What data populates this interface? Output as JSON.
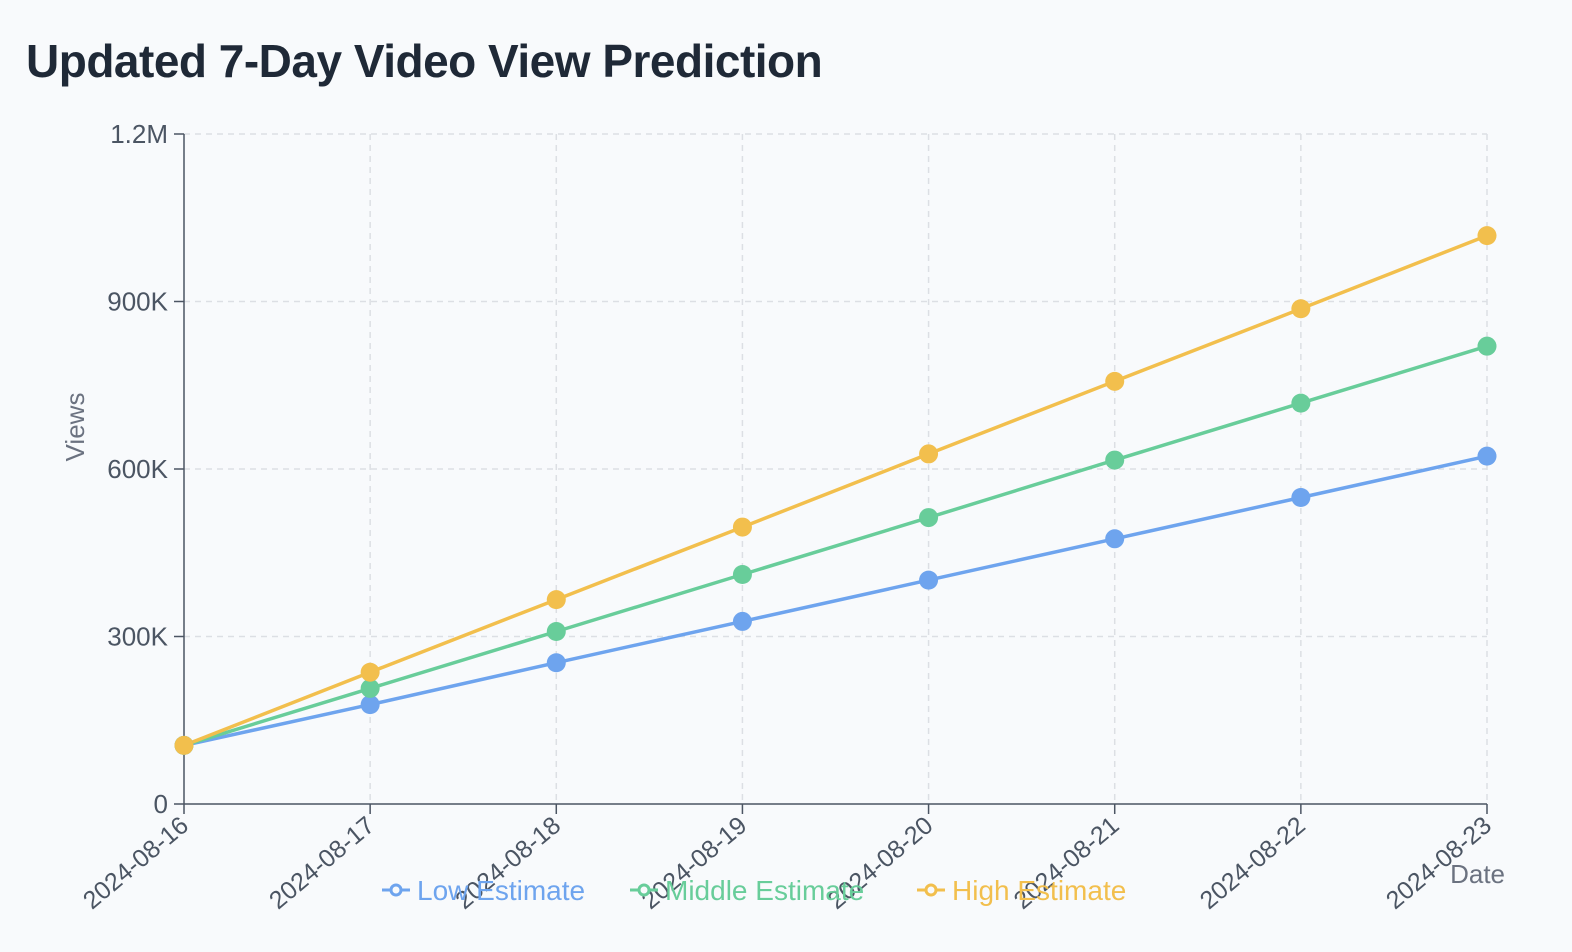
{
  "title": "Updated 7-Day Video View Prediction",
  "chart_data": {
    "type": "line",
    "xlabel": "Date",
    "ylabel": "Views",
    "ylim": [
      0,
      1200000
    ],
    "yticks": [
      {
        "value": 0,
        "label": "0"
      },
      {
        "value": 300000,
        "label": "300K"
      },
      {
        "value": 600000,
        "label": "600K"
      },
      {
        "value": 900000,
        "label": "900K"
      },
      {
        "value": 1200000,
        "label": "1.2M"
      }
    ],
    "x": [
      "2024-08-16",
      "2024-08-17",
      "2024-08-18",
      "2024-08-19",
      "2024-08-20",
      "2024-08-21",
      "2024-08-22",
      "2024-08-23"
    ],
    "grid": true,
    "legend_position": "bottom",
    "series": [
      {
        "name": "Low Estimate",
        "color": "#6ea4ee",
        "values": [
          105000,
          178000,
          253000,
          327000,
          401000,
          475000,
          549000,
          623000
        ]
      },
      {
        "name": "Middle Estimate",
        "color": "#68cd9a",
        "values": [
          105000,
          207000,
          309000,
          411000,
          513000,
          616000,
          718000,
          820000
        ]
      },
      {
        "name": "High Estimate",
        "color": "#f2bf4d",
        "values": [
          105000,
          236000,
          366000,
          496000,
          627000,
          757000,
          887000,
          1018000
        ]
      }
    ]
  }
}
